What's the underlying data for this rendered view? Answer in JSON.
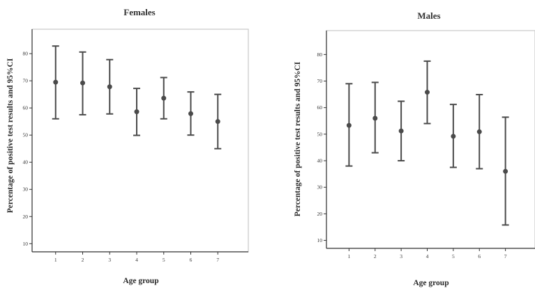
{
  "chart_data": [
    {
      "type": "errorbar",
      "title": "Females",
      "xlabel": "Age group",
      "ylabel": "Percentage of positive test results and 95%CI",
      "categories": [
        "1",
        "2",
        "3",
        "4",
        "5",
        "6",
        "7"
      ],
      "ylim": [
        7,
        89
      ],
      "yticks": [
        10,
        20,
        30,
        40,
        50,
        60,
        70,
        80
      ],
      "series": [
        {
          "values": [
            69.5,
            69.2,
            67.8,
            58.6,
            63.6,
            57.9,
            55.0
          ],
          "lower": [
            56.0,
            57.5,
            57.8,
            49.9,
            56.0,
            50.0,
            45.0
          ],
          "upper": [
            82.8,
            80.6,
            77.8,
            67.2,
            71.2,
            65.9,
            65.0
          ]
        }
      ]
    },
    {
      "type": "errorbar",
      "title": "Males",
      "xlabel": "Age group",
      "ylabel": "Percentage of positive test results and 95%CI",
      "categories": [
        "1",
        "2",
        "3",
        "4",
        "5",
        "6",
        "7"
      ],
      "ylim": [
        7,
        89
      ],
      "yticks": [
        10,
        20,
        30,
        40,
        50,
        60,
        70,
        80
      ],
      "series": [
        {
          "values": [
            53.3,
            56.0,
            51.2,
            65.8,
            49.2,
            50.9,
            36.0
          ],
          "lower": [
            38.0,
            43.0,
            40.0,
            54.0,
            37.5,
            37.0,
            15.8
          ],
          "upper": [
            69.0,
            69.5,
            62.4,
            77.5,
            61.2,
            64.9,
            56.4
          ]
        }
      ]
    }
  ]
}
